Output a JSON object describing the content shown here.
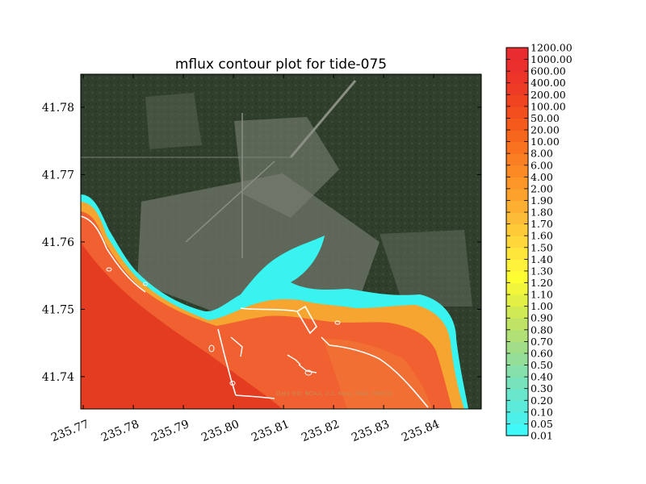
{
  "chart_data": {
    "type": "heatmap",
    "title": "mflux contour plot for tide-075",
    "xlabel": "",
    "ylabel": "",
    "xlim": [
      235.7695,
      235.8495
    ],
    "ylim": [
      41.7352,
      41.7849
    ],
    "x_ticks": [
      "235.77",
      "235.78",
      "235.79",
      "235.80",
      "235.81",
      "235.82",
      "235.83",
      "235.84"
    ],
    "y_ticks": [
      "41.74",
      "41.75",
      "41.76",
      "41.77",
      "41.78"
    ],
    "colorbar": {
      "levels": [
        "0.01",
        "0.05",
        "0.10",
        "0.20",
        "0.30",
        "0.40",
        "0.50",
        "0.60",
        "0.70",
        "0.80",
        "0.90",
        "1.00",
        "1.10",
        "1.20",
        "1.30",
        "1.40",
        "1.50",
        "1.60",
        "1.70",
        "1.80",
        "1.90",
        "2.00",
        "4.00",
        "6.00",
        "8.00",
        "10.00",
        "20.00",
        "50.00",
        "100.00",
        "200.00",
        "400.00",
        "600.00",
        "1000.00",
        "1200.00"
      ],
      "colors": [
        "#3ff8f8",
        "#4df0e8",
        "#5ceadb",
        "#6ae6cc",
        "#78e2bc",
        "#86e0ab",
        "#94de9a",
        "#a2de88",
        "#b0e076",
        "#bfe465",
        "#d0ea55",
        "#e2f045",
        "#f2f63a",
        "#fefe33",
        "#fff23a",
        "#fee63a",
        "#fed83a",
        "#fdca38",
        "#fdbc35",
        "#fcaf30",
        "#fca22c",
        "#fc9628",
        "#fb8a25",
        "#fa7e22",
        "#f8721f",
        "#f6661d",
        "#f45a1c",
        "#f24e1e",
        "#f04421",
        "#ee3b25",
        "#ec3429",
        "#ea2f2d",
        "#e92c30"
      ]
    },
    "background": "satellite imagery",
    "attribution": "Data SIO, NOAA, U.S. Navy, NGA, GEBCO"
  }
}
